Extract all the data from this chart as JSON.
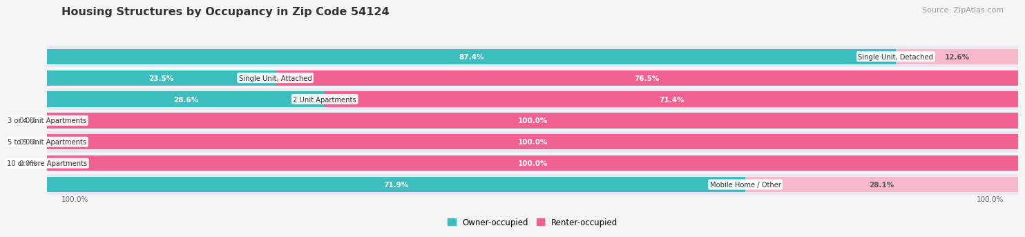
{
  "title": "Housing Structures by Occupancy in Zip Code 54124",
  "source": "Source: ZipAtlas.com",
  "categories": [
    "Single Unit, Detached",
    "Single Unit, Attached",
    "2 Unit Apartments",
    "3 or 4 Unit Apartments",
    "5 to 9 Unit Apartments",
    "10 or more Apartments",
    "Mobile Home / Other"
  ],
  "owner_pct": [
    87.4,
    23.5,
    28.6,
    0.0,
    0.0,
    0.0,
    71.9
  ],
  "renter_pct": [
    12.6,
    76.5,
    71.4,
    100.0,
    100.0,
    100.0,
    28.1
  ],
  "owner_color": "#3dbdbd",
  "renter_color": "#f06090",
  "owner_color_light": "#b0dede",
  "renter_color_light": "#f8b8cc",
  "row_bg_odd": "#e8e8ee",
  "row_bg_even": "#f4f4f8",
  "fig_bg": "#f5f5f5",
  "title_color": "#333333",
  "source_color": "#999999",
  "label_dark": "#555555",
  "label_white": "#ffffff",
  "owner_label": "Owner-occupied",
  "renter_label": "Renter-occupied"
}
